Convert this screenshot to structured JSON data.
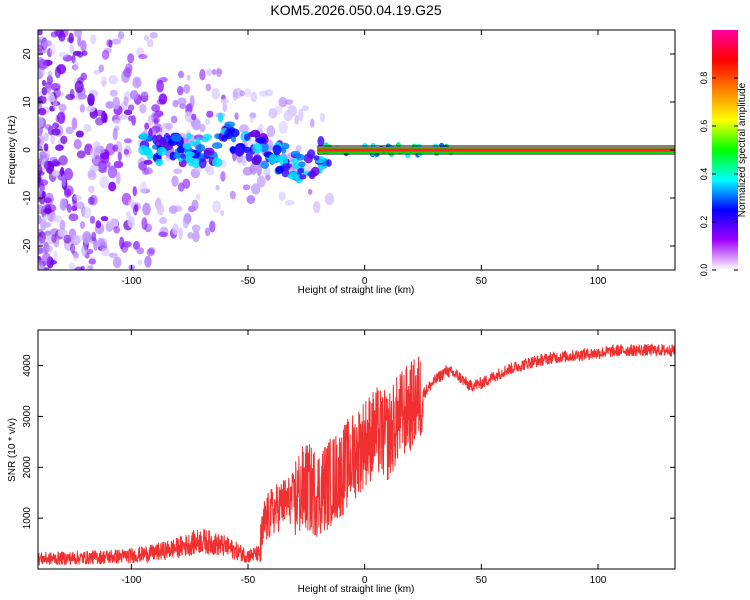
{
  "title": "KOM5.2026.050.04.19.G25",
  "chart_data": [
    {
      "type": "heatmap",
      "name": "spectrogram",
      "xlabel": "Height of straight line (km)",
      "ylabel": "Frequency (Hz)",
      "xlim": [
        -140,
        133
      ],
      "ylim": [
        -25,
        25
      ],
      "xticks": [
        -100,
        -50,
        0,
        50,
        100
      ],
      "yticks": [
        -20,
        -10,
        0,
        10,
        20
      ],
      "carrier_frequency": 0,
      "colorbar": {
        "label": "Normalized spectral amplitude",
        "range": [
          0,
          1
        ],
        "ticks": [
          0.0,
          0.2,
          0.4,
          0.6,
          0.8
        ],
        "colors": [
          "#ffffff",
          "#a000ff",
          "#0000ff",
          "#00ffff",
          "#00ff00",
          "#ffff00",
          "#ff8000",
          "#ff0000",
          "#ff00a0"
        ]
      }
    },
    {
      "type": "line",
      "name": "snr",
      "xlabel": "Height of straight line (km)",
      "ylabel": "SNR (10 * v/v)",
      "xlim": [
        -140,
        133
      ],
      "ylim": [
        0,
        4700
      ],
      "xticks": [
        -100,
        -50,
        0,
        50,
        100
      ],
      "yticks": [
        1000,
        2000,
        3000,
        4000
      ],
      "color": "#f03030",
      "series": [
        {
          "name": "SNR",
          "x": [
            -140,
            -120,
            -100,
            -90,
            -80,
            -70,
            -60,
            -50,
            -45,
            -43,
            -40,
            -35,
            -30,
            -25,
            -20,
            -15,
            -10,
            -5,
            0,
            5,
            10,
            15,
            20,
            25,
            30,
            35,
            40,
            45,
            50,
            60,
            70,
            80,
            90,
            100,
            110,
            120,
            133
          ],
          "values": [
            200,
            220,
            260,
            320,
            420,
            560,
            450,
            260,
            300,
            900,
            1100,
            1300,
            1400,
            1600,
            1500,
            1700,
            1900,
            2200,
            2500,
            2700,
            2600,
            3000,
            3200,
            3450,
            3700,
            3900,
            3800,
            3600,
            3650,
            3900,
            4050,
            4150,
            4200,
            4250,
            4300,
            4300,
            4300
          ]
        }
      ]
    }
  ]
}
